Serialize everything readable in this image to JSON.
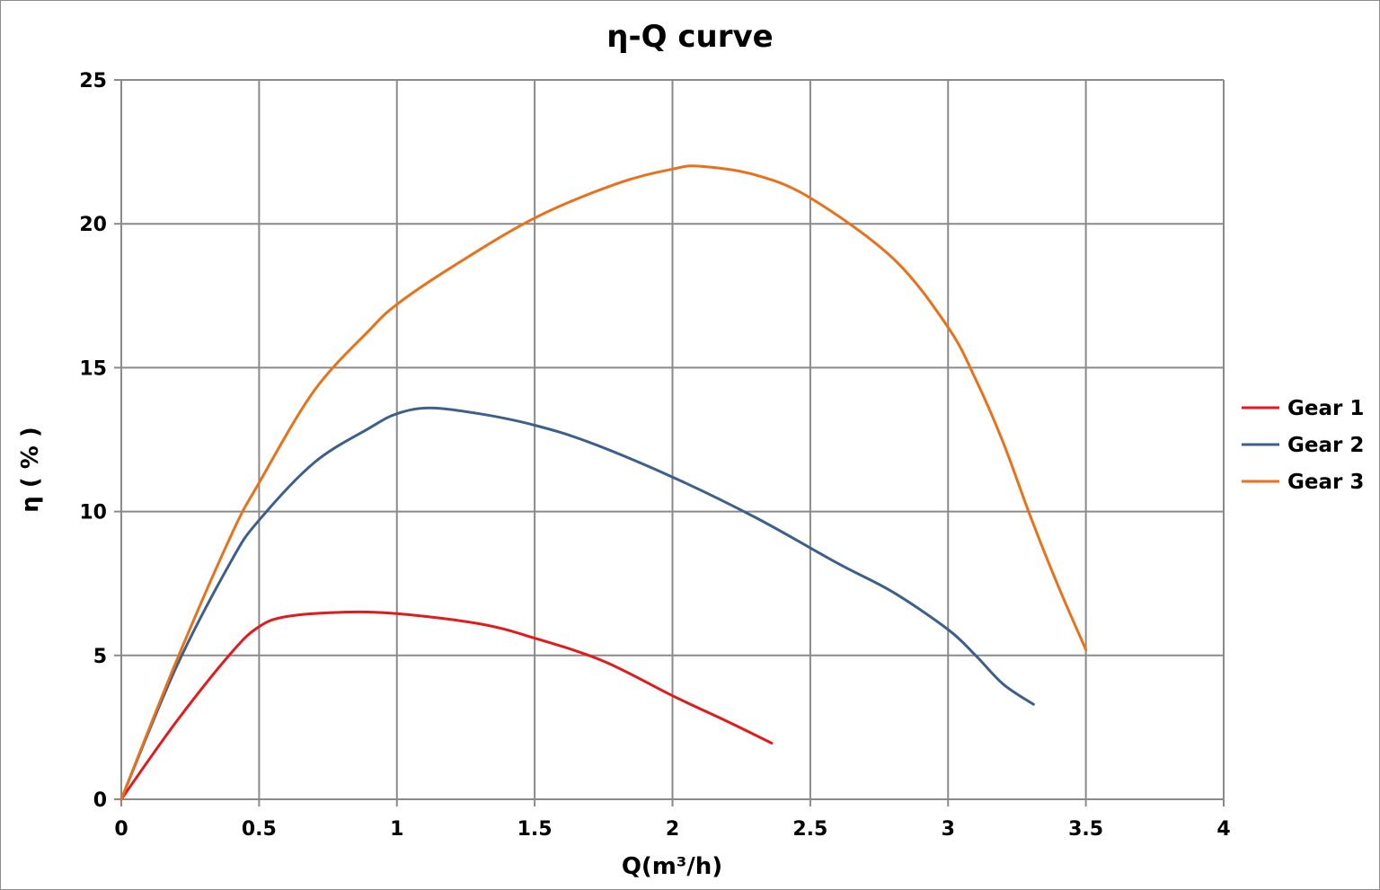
{
  "chart_data": {
    "type": "line",
    "title": "η-Q  curve",
    "xlabel": "Q(m³/h)",
    "ylabel": "η ( % )",
    "xlim": [
      0,
      4
    ],
    "ylim": [
      0,
      25
    ],
    "xticks": [
      "0",
      "0.5",
      "1",
      "1.5",
      "2",
      "2.5",
      "3",
      "3.5",
      "4"
    ],
    "yticks": [
      "0",
      "5",
      "10",
      "15",
      "20",
      "25"
    ],
    "grid": true,
    "legend_position": "right",
    "series": [
      {
        "name": "Gear 1",
        "color": "#e31a1c",
        "points": [
          [
            0,
            0
          ],
          [
            0.2,
            2.7
          ],
          [
            0.4,
            5.1
          ],
          [
            0.5,
            6.0
          ],
          [
            0.6,
            6.35
          ],
          [
            0.8,
            6.5
          ],
          [
            1.0,
            6.45
          ],
          [
            1.3,
            6.1
          ],
          [
            1.5,
            5.6
          ],
          [
            1.75,
            4.8
          ],
          [
            2.0,
            3.6
          ],
          [
            2.2,
            2.7
          ],
          [
            2.36,
            1.95
          ]
        ]
      },
      {
        "name": "Gear 2",
        "color": "#3d5f8c",
        "points": [
          [
            0,
            0
          ],
          [
            0.2,
            4.6
          ],
          [
            0.4,
            8.3
          ],
          [
            0.5,
            9.7
          ],
          [
            0.7,
            11.7
          ],
          [
            0.9,
            12.9
          ],
          [
            1.0,
            13.4
          ],
          [
            1.12,
            13.6
          ],
          [
            1.3,
            13.4
          ],
          [
            1.5,
            13.0
          ],
          [
            1.7,
            12.4
          ],
          [
            2.0,
            11.2
          ],
          [
            2.3,
            9.8
          ],
          [
            2.6,
            8.2
          ],
          [
            2.8,
            7.2
          ],
          [
            3.0,
            5.9
          ],
          [
            3.1,
            5.0
          ],
          [
            3.2,
            4.0
          ],
          [
            3.31,
            3.3
          ]
        ]
      },
      {
        "name": "Gear 3",
        "color": "#e8711a",
        "points": [
          [
            0,
            0
          ],
          [
            0.2,
            4.8
          ],
          [
            0.4,
            9.2
          ],
          [
            0.5,
            11.0
          ],
          [
            0.7,
            14.2
          ],
          [
            0.9,
            16.3
          ],
          [
            1.0,
            17.2
          ],
          [
            1.2,
            18.5
          ],
          [
            1.5,
            20.2
          ],
          [
            1.8,
            21.4
          ],
          [
            2.0,
            21.9
          ],
          [
            2.1,
            22.0
          ],
          [
            2.3,
            21.7
          ],
          [
            2.5,
            20.9
          ],
          [
            2.8,
            18.8
          ],
          [
            3.0,
            16.4
          ],
          [
            3.1,
            14.6
          ],
          [
            3.2,
            12.4
          ],
          [
            3.3,
            9.8
          ],
          [
            3.4,
            7.4
          ],
          [
            3.5,
            5.2
          ]
        ]
      }
    ]
  }
}
